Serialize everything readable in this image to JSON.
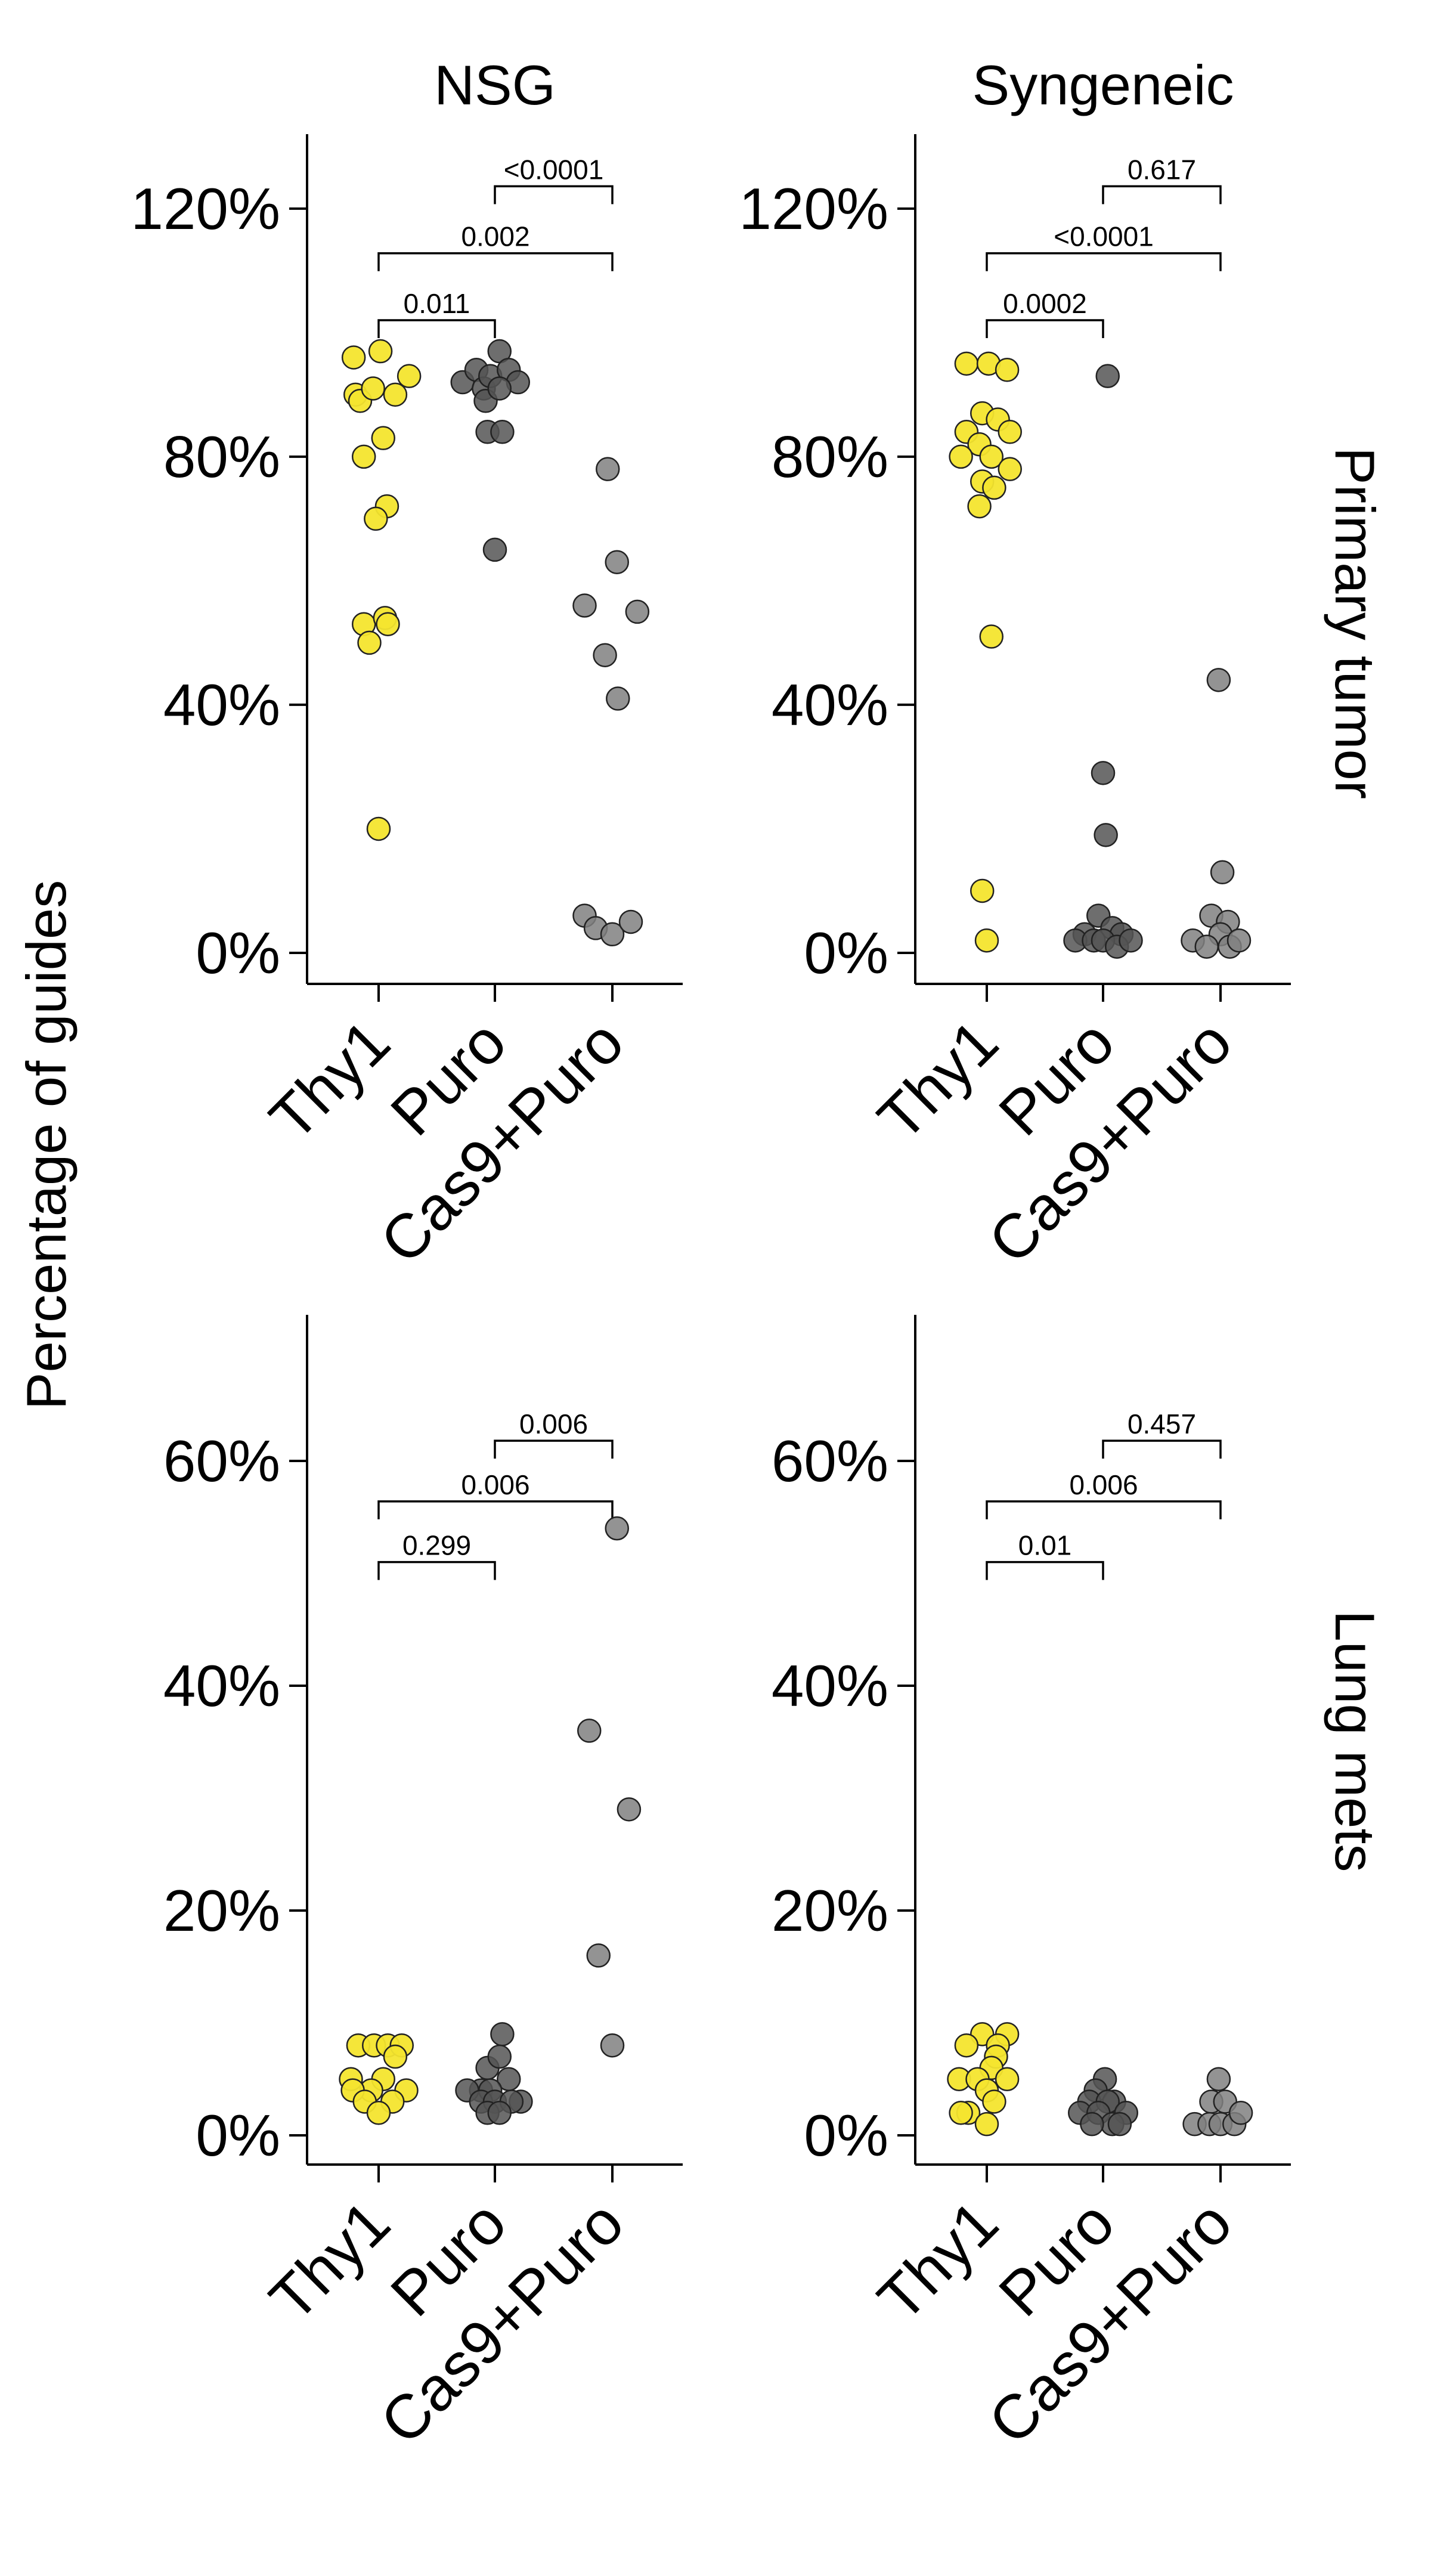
{
  "ylabel": "Percentage of guides",
  "columns": [
    "NSG",
    "Syngeneic"
  ],
  "rows": [
    "Primary tumor",
    "Lung mets"
  ],
  "colors": {
    "Thy1": "#f4e52e",
    "Puro": "#555555",
    "Cas9+Puro": "#808080"
  },
  "chart_data": [
    {
      "type": "scatter",
      "panel": "NSG / Primary tumor",
      "categories": [
        "Thy1",
        "Puro",
        "Cas9+Puro"
      ],
      "ylim": [
        -5,
        132
      ],
      "yticks": [
        0,
        40,
        80,
        120
      ],
      "ytick_labels": [
        "0%",
        "40%",
        "80%",
        "120%"
      ],
      "series": [
        {
          "category": "Thy1",
          "color": "#f4e52e",
          "points": [
            {
              "x": -0.27,
              "y": 96
            },
            {
              "x": 0.02,
              "y": 97
            },
            {
              "x": -0.25,
              "y": 90
            },
            {
              "x": -0.2,
              "y": 89
            },
            {
              "x": -0.06,
              "y": 91
            },
            {
              "x": 0.18,
              "y": 90
            },
            {
              "x": 0.33,
              "y": 93
            },
            {
              "x": 0.05,
              "y": 83
            },
            {
              "x": -0.16,
              "y": 80
            },
            {
              "x": 0.09,
              "y": 72
            },
            {
              "x": -0.03,
              "y": 70
            },
            {
              "x": -0.16,
              "y": 53
            },
            {
              "x": 0.07,
              "y": 54
            },
            {
              "x": -0.1,
              "y": 50
            },
            {
              "x": 0.1,
              "y": 53
            },
            {
              "x": 0.0,
              "y": 20
            }
          ]
        },
        {
          "category": "Puro",
          "color": "#555555",
          "points": [
            {
              "x": -0.35,
              "y": 92
            },
            {
              "x": -0.2,
              "y": 94
            },
            {
              "x": -0.12,
              "y": 91
            },
            {
              "x": -0.05,
              "y": 93
            },
            {
              "x": 0.05,
              "y": 97
            },
            {
              "x": 0.15,
              "y": 94
            },
            {
              "x": 0.25,
              "y": 92
            },
            {
              "x": -0.1,
              "y": 89
            },
            {
              "x": 0.05,
              "y": 91
            },
            {
              "x": -0.08,
              "y": 84
            },
            {
              "x": 0.08,
              "y": 84
            },
            {
              "x": 0.0,
              "y": 65
            }
          ]
        },
        {
          "category": "Cas9+Puro",
          "color": "#808080",
          "points": [
            {
              "x": -0.05,
              "y": 78
            },
            {
              "x": 0.05,
              "y": 63
            },
            {
              "x": -0.3,
              "y": 56
            },
            {
              "x": 0.27,
              "y": 55
            },
            {
              "x": -0.08,
              "y": 48
            },
            {
              "x": 0.06,
              "y": 41
            },
            {
              "x": -0.3,
              "y": 6
            },
            {
              "x": -0.18,
              "y": 4
            },
            {
              "x": 0.0,
              "y": 3
            },
            {
              "x": 0.2,
              "y": 5
            }
          ]
        }
      ],
      "comparisons": [
        {
          "from": "Thy1",
          "to": "Puro",
          "label": "0.011"
        },
        {
          "from": "Thy1",
          "to": "Cas9+Puro",
          "label": "0.002"
        },
        {
          "from": "Puro",
          "to": "Cas9+Puro",
          "label": "<0.0001"
        }
      ]
    },
    {
      "type": "scatter",
      "panel": "Syngeneic / Primary tumor",
      "categories": [
        "Thy1",
        "Puro",
        "Cas9+Puro"
      ],
      "ylim": [
        -5,
        132
      ],
      "yticks": [
        0,
        40,
        80,
        120
      ],
      "ytick_labels": [
        "0%",
        "40%",
        "80%",
        "120%"
      ],
      "series": [
        {
          "category": "Thy1",
          "color": "#f4e52e",
          "points": [
            {
              "x": -0.22,
              "y": 95
            },
            {
              "x": 0.02,
              "y": 95
            },
            {
              "x": 0.22,
              "y": 94
            },
            {
              "x": -0.05,
              "y": 87
            },
            {
              "x": 0.12,
              "y": 86
            },
            {
              "x": -0.22,
              "y": 84
            },
            {
              "x": 0.25,
              "y": 84
            },
            {
              "x": -0.08,
              "y": 82
            },
            {
              "x": 0.05,
              "y": 80
            },
            {
              "x": -0.28,
              "y": 80
            },
            {
              "x": 0.25,
              "y": 78
            },
            {
              "x": -0.05,
              "y": 76
            },
            {
              "x": 0.08,
              "y": 75
            },
            {
              "x": -0.08,
              "y": 72
            },
            {
              "x": 0.05,
              "y": 51
            },
            {
              "x": -0.05,
              "y": 10
            },
            {
              "x": 0.0,
              "y": 2
            }
          ]
        },
        {
          "category": "Puro",
          "color": "#555555",
          "points": [
            {
              "x": 0.05,
              "y": 93
            },
            {
              "x": 0.0,
              "y": 29
            },
            {
              "x": 0.03,
              "y": 19
            },
            {
              "x": -0.05,
              "y": 6
            },
            {
              "x": 0.1,
              "y": 4
            },
            {
              "x": -0.2,
              "y": 3
            },
            {
              "x": 0.2,
              "y": 3
            },
            {
              "x": -0.3,
              "y": 2
            },
            {
              "x": -0.1,
              "y": 2
            },
            {
              "x": 0.0,
              "y": 2
            },
            {
              "x": 0.15,
              "y": 1
            },
            {
              "x": 0.3,
              "y": 2
            }
          ]
        },
        {
          "category": "Cas9+Puro",
          "color": "#808080",
          "points": [
            {
              "x": -0.02,
              "y": 44
            },
            {
              "x": 0.02,
              "y": 13
            },
            {
              "x": -0.1,
              "y": 6
            },
            {
              "x": 0.08,
              "y": 5
            },
            {
              "x": -0.3,
              "y": 2
            },
            {
              "x": 0.0,
              "y": 3
            },
            {
              "x": 0.1,
              "y": 1
            },
            {
              "x": 0.2,
              "y": 2
            },
            {
              "x": -0.15,
              "y": 1
            }
          ]
        }
      ],
      "comparisons": [
        {
          "from": "Thy1",
          "to": "Puro",
          "label": "0.0002"
        },
        {
          "from": "Thy1",
          "to": "Cas9+Puro",
          "label": "<0.0001"
        },
        {
          "from": "Puro",
          "to": "Cas9+Puro",
          "label": "0.617"
        }
      ]
    },
    {
      "type": "scatter",
      "panel": "NSG / Lung mets",
      "categories": [
        "Thy1",
        "Puro",
        "Cas9+Puro"
      ],
      "ylim": [
        -2.6,
        73
      ],
      "yticks": [
        0,
        20,
        40,
        60
      ],
      "ytick_labels": [
        "0%",
        "20%",
        "40%",
        "60%"
      ],
      "series": [
        {
          "category": "Thy1",
          "color": "#f4e52e",
          "points": [
            {
              "x": -0.22,
              "y": 8
            },
            {
              "x": -0.05,
              "y": 8
            },
            {
              "x": 0.1,
              "y": 8
            },
            {
              "x": 0.25,
              "y": 8
            },
            {
              "x": 0.18,
              "y": 7
            },
            {
              "x": -0.3,
              "y": 5
            },
            {
              "x": 0.05,
              "y": 5
            },
            {
              "x": 0.3,
              "y": 4
            },
            {
              "x": -0.08,
              "y": 4
            },
            {
              "x": -0.28,
              "y": 4
            },
            {
              "x": -0.15,
              "y": 3
            },
            {
              "x": 0.15,
              "y": 3
            },
            {
              "x": 0.0,
              "y": 2
            }
          ]
        },
        {
          "category": "Puro",
          "color": "#555555",
          "points": [
            {
              "x": 0.08,
              "y": 9
            },
            {
              "x": -0.08,
              "y": 6
            },
            {
              "x": 0.05,
              "y": 7
            },
            {
              "x": -0.15,
              "y": 4
            },
            {
              "x": 0.15,
              "y": 5
            },
            {
              "x": -0.05,
              "y": 4
            },
            {
              "x": 0.28,
              "y": 3
            },
            {
              "x": -0.3,
              "y": 4
            },
            {
              "x": -0.15,
              "y": 3
            },
            {
              "x": 0.0,
              "y": 3
            },
            {
              "x": 0.18,
              "y": 3
            },
            {
              "x": -0.08,
              "y": 2
            },
            {
              "x": 0.05,
              "y": 2
            }
          ]
        },
        {
          "category": "Cas9+Puro",
          "color": "#808080",
          "points": [
            {
              "x": 0.05,
              "y": 54
            },
            {
              "x": -0.25,
              "y": 36
            },
            {
              "x": 0.18,
              "y": 29
            },
            {
              "x": -0.15,
              "y": 16
            },
            {
              "x": 0.0,
              "y": 8
            }
          ]
        }
      ],
      "comparisons": [
        {
          "from": "Thy1",
          "to": "Puro",
          "label": "0.299"
        },
        {
          "from": "Thy1",
          "to": "Cas9+Puro",
          "label": "0.006"
        },
        {
          "from": "Puro",
          "to": "Cas9+Puro",
          "label": "0.006"
        }
      ]
    },
    {
      "type": "scatter",
      "panel": "Syngeneic / Lung mets",
      "categories": [
        "Thy1",
        "Puro",
        "Cas9+Puro"
      ],
      "ylim": [
        -2.6,
        73
      ],
      "yticks": [
        0,
        20,
        40,
        60
      ],
      "ytick_labels": [
        "0%",
        "20%",
        "40%",
        "60%"
      ],
      "series": [
        {
          "category": "Thy1",
          "color": "#f4e52e",
          "points": [
            {
              "x": 0.22,
              "y": 9
            },
            {
              "x": -0.05,
              "y": 9
            },
            {
              "x": 0.12,
              "y": 8
            },
            {
              "x": -0.22,
              "y": 8
            },
            {
              "x": 0.1,
              "y": 7
            },
            {
              "x": -0.3,
              "y": 5
            },
            {
              "x": 0.05,
              "y": 6
            },
            {
              "x": -0.1,
              "y": 5
            },
            {
              "x": 0.22,
              "y": 5
            },
            {
              "x": 0.0,
              "y": 4
            },
            {
              "x": -0.2,
              "y": 2
            },
            {
              "x": -0.28,
              "y": 2
            },
            {
              "x": 0.08,
              "y": 3
            },
            {
              "x": 0.0,
              "y": 1
            }
          ]
        },
        {
          "category": "Puro",
          "color": "#555555",
          "points": [
            {
              "x": 0.02,
              "y": 5
            },
            {
              "x": -0.08,
              "y": 4
            },
            {
              "x": 0.12,
              "y": 3
            },
            {
              "x": -0.15,
              "y": 3
            },
            {
              "x": 0.05,
              "y": 3
            },
            {
              "x": -0.25,
              "y": 2
            },
            {
              "x": 0.25,
              "y": 2
            },
            {
              "x": -0.05,
              "y": 2
            },
            {
              "x": 0.1,
              "y": 1
            },
            {
              "x": -0.12,
              "y": 1
            },
            {
              "x": 0.18,
              "y": 1
            }
          ]
        },
        {
          "category": "Cas9+Puro",
          "color": "#808080",
          "points": [
            {
              "x": -0.02,
              "y": 5
            },
            {
              "x": -0.1,
              "y": 3
            },
            {
              "x": 0.05,
              "y": 3
            },
            {
              "x": -0.28,
              "y": 1
            },
            {
              "x": -0.12,
              "y": 1
            },
            {
              "x": 0.0,
              "y": 1
            },
            {
              "x": 0.15,
              "y": 1
            },
            {
              "x": 0.22,
              "y": 2
            }
          ]
        }
      ],
      "comparisons": [
        {
          "from": "Thy1",
          "to": "Puro",
          "label": "0.01"
        },
        {
          "from": "Thy1",
          "to": "Cas9+Puro",
          "label": "0.006"
        },
        {
          "from": "Puro",
          "to": "Cas9+Puro",
          "label": "0.457"
        }
      ]
    }
  ]
}
